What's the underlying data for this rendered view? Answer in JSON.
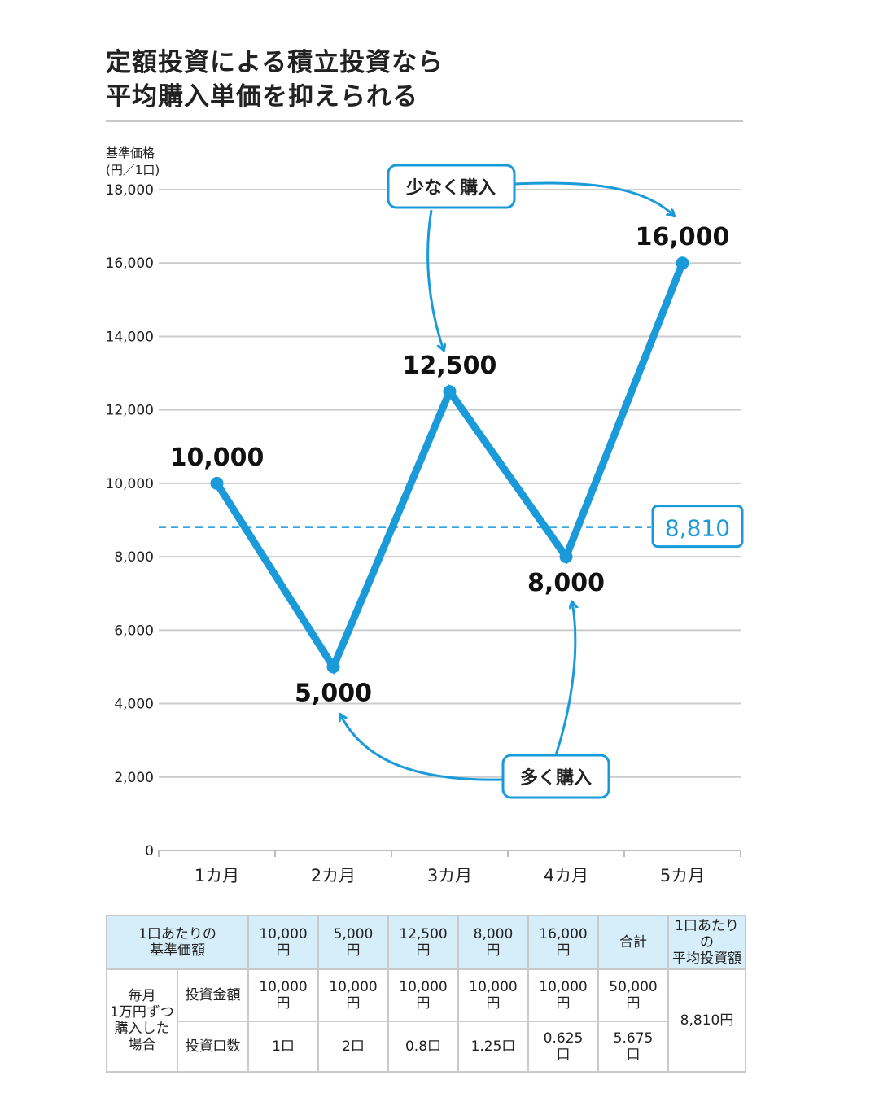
{
  "title_line1": "定額投資による積立投資なら",
  "title_line2": "平均購入単価を抑えられる",
  "chart_data": {
    "type": "line",
    "ylabel_line1": "基準価格",
    "ylabel_line2": "(円／1口)",
    "categories": [
      "1カ月",
      "2カ月",
      "3カ月",
      "4カ月",
      "5カ月"
    ],
    "values": [
      10000,
      5000,
      12500,
      8000,
      16000
    ],
    "data_labels": [
      "10,000",
      "5,000",
      "12,500",
      "8,000",
      "16,000"
    ],
    "ylim": [
      0,
      18000
    ],
    "yticks": [
      0,
      2000,
      4000,
      6000,
      8000,
      10000,
      12000,
      14000,
      16000,
      18000
    ],
    "ytick_labels": [
      "0",
      "2,000",
      "4,000",
      "6,000",
      "8,000",
      "10,000",
      "12,000",
      "14,000",
      "16,000",
      "18,000"
    ],
    "grid": true,
    "average": {
      "value": 8810,
      "label": "8,810"
    },
    "annotations": {
      "buy_less": "少なく購入",
      "buy_more": "多く購入"
    },
    "colors": {
      "line": "#1a9ad9",
      "average": "#1a9ad9",
      "grid": "#cccccc"
    }
  },
  "table": {
    "header": [
      "1口あたりの\n基準価額",
      "10,000\n円",
      "5,000\n円",
      "12,500\n円",
      "8,000\n円",
      "16,000\n円",
      "合計",
      "1口あたりの\n平均投資額"
    ],
    "side_label": "毎月\n1万円ずつ\n購入した\n場合",
    "rows": [
      {
        "label": "投資金額",
        "cells": [
          "10,000\n円",
          "10,000\n円",
          "10,000\n円",
          "10,000\n円",
          "10,000\n円",
          "50,000\n円"
        ]
      },
      {
        "label": "投資口数",
        "cells": [
          "1口",
          "2口",
          "0.8口",
          "1.25口",
          "0.625\n口",
          "5.675\n口"
        ]
      }
    ],
    "average_value": "8,810円"
  }
}
